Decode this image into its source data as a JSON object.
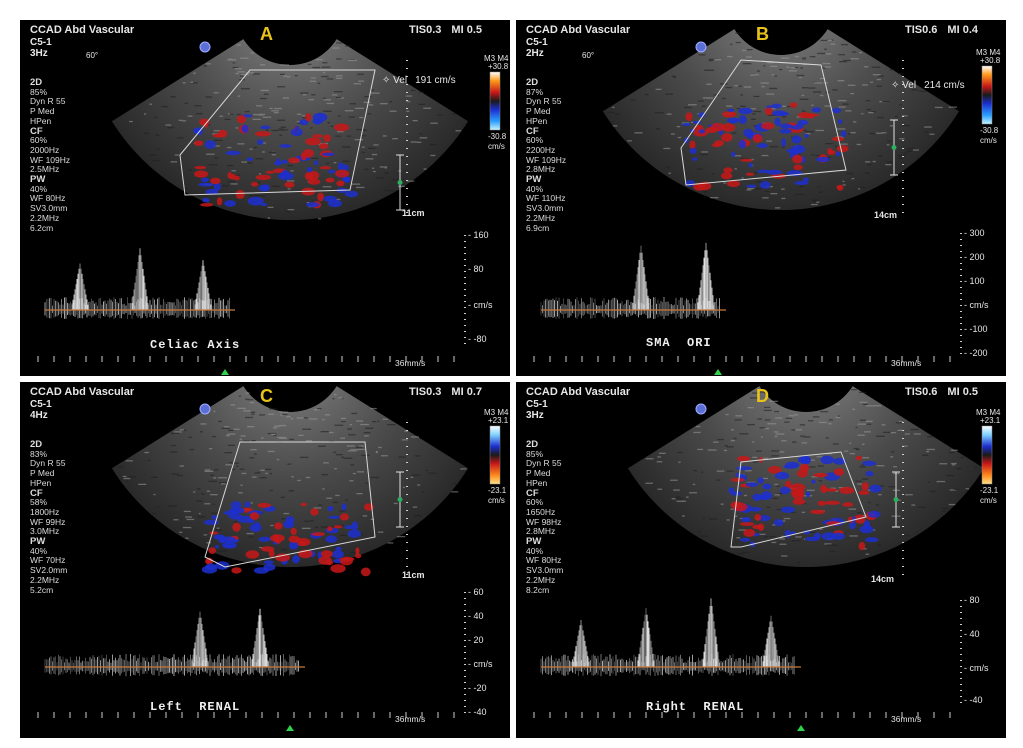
{
  "panels": [
    {
      "id": "A",
      "letter": "A",
      "title": "CCAD Abd Vascular",
      "probe": "C5-1",
      "rate": "3Hz",
      "angle": "60°",
      "tis": "TIS0.3",
      "mi": "MI 0.5",
      "vel_label": "Vel",
      "vel_value": "191 cm/s",
      "params_2d": [
        "2D",
        "85%",
        "Dyn R 55",
        "P Med",
        "HPen"
      ],
      "params_cf": [
        "CF",
        "60%",
        "2000Hz",
        "WF 109Hz",
        "2.5MHz"
      ],
      "params_pw": [
        "PW",
        "40%",
        "WF 80Hz",
        "SV3.0mm",
        "2.2MHz",
        "6.2cm"
      ],
      "cbar_top": "+30.8",
      "cbar_bottom": "-30.8",
      "cbar_header": "M3 M4",
      "cbar_unit": "cm/s",
      "cbar_orientation": "red-top",
      "depth": "11cm",
      "scale": [
        "160",
        "80",
        "cm/s",
        "-80"
      ],
      "speed": "36mm/s",
      "label": "Celiac Axis",
      "colors": {
        "red": "#c81818",
        "blue": "#1c2fd0"
      }
    },
    {
      "id": "B",
      "letter": "B",
      "title": "CCAD Abd Vascular",
      "probe": "C5-1",
      "rate": "2Hz",
      "angle": "60°",
      "tis": "TIS0.6",
      "mi": "MI 0.4",
      "vel_label": "Vel",
      "vel_value": "214 cm/s",
      "params_2d": [
        "2D",
        "87%",
        "Dyn R 55",
        "P Med",
        "HPen"
      ],
      "params_cf": [
        "CF",
        "60%",
        "2200Hz",
        "WF 109Hz",
        "2.8MHz"
      ],
      "params_pw": [
        "PW",
        "40%",
        "WF 110Hz",
        "SV3.0mm",
        "2.2MHz",
        "6.9cm"
      ],
      "cbar_top": "+30.8",
      "cbar_bottom": "-30.8",
      "cbar_header": "M3 M4",
      "cbar_unit": "cm/s",
      "cbar_orientation": "red-top",
      "depth": "14cm",
      "scale": [
        "300",
        "200",
        "100",
        "cm/s",
        "-100",
        "-200"
      ],
      "speed": "36mm/s",
      "label": "SMA  ORI",
      "colors": {
        "red": "#c81818",
        "blue": "#1c2fd0"
      }
    },
    {
      "id": "C",
      "letter": "C",
      "title": "CCAD Abd Vascular",
      "probe": "C5-1",
      "rate": "4Hz",
      "angle": "",
      "tis": "TIS0.3",
      "mi": "MI 0.7",
      "vel_label": "",
      "vel_value": "",
      "params_2d": [
        "2D",
        "83%",
        "Dyn R 55",
        "P Med",
        "HPen"
      ],
      "params_cf": [
        "CF",
        "58%",
        "1800Hz",
        "WF 99Hz",
        "3.0MHz"
      ],
      "params_pw": [
        "PW",
        "40%",
        "WF 70Hz",
        "SV2.0mm",
        "2.2MHz",
        "5.2cm"
      ],
      "cbar_top": "+23.1",
      "cbar_bottom": "-23.1",
      "cbar_header": "M3 M4",
      "cbar_unit": "cm/s",
      "cbar_orientation": "blue-top",
      "depth": "11cm",
      "scale": [
        "60",
        "40",
        "20",
        "cm/s",
        "-20",
        "-40"
      ],
      "speed": "36mm/s",
      "label": "Left  RENAL",
      "colors": {
        "red": "#c81818",
        "blue": "#1c2fd0"
      }
    },
    {
      "id": "D",
      "letter": "D",
      "title": "CCAD Abd Vascular",
      "probe": "C5-1",
      "rate": "3Hz",
      "angle": "",
      "tis": "TIS0.6",
      "mi": "MI 0.5",
      "vel_label": "",
      "vel_value": "",
      "params_2d": [
        "2D",
        "85%",
        "Dyn R 55",
        "P Med",
        "HPen"
      ],
      "params_cf": [
        "CF",
        "60%",
        "1650Hz",
        "WF 98Hz",
        "2.8MHz"
      ],
      "params_pw": [
        "PW",
        "40%",
        "WF 80Hz",
        "SV3.0mm",
        "2.2MHz",
        "8.2cm"
      ],
      "cbar_top": "+23.1",
      "cbar_bottom": "-23.1",
      "cbar_header": "M3 M4",
      "cbar_unit": "cm/s",
      "cbar_orientation": "blue-top",
      "depth": "14cm",
      "scale": [
        "80",
        "40",
        "cm/s",
        "-40"
      ],
      "speed": "36mm/s",
      "label": "Right  RENAL",
      "colors": {
        "red": "#c81818",
        "blue": "#1c2fd0"
      }
    }
  ],
  "icons": {
    "probe_marker": "globe-icon",
    "baseline_marker": "triangle-up-icon"
  }
}
